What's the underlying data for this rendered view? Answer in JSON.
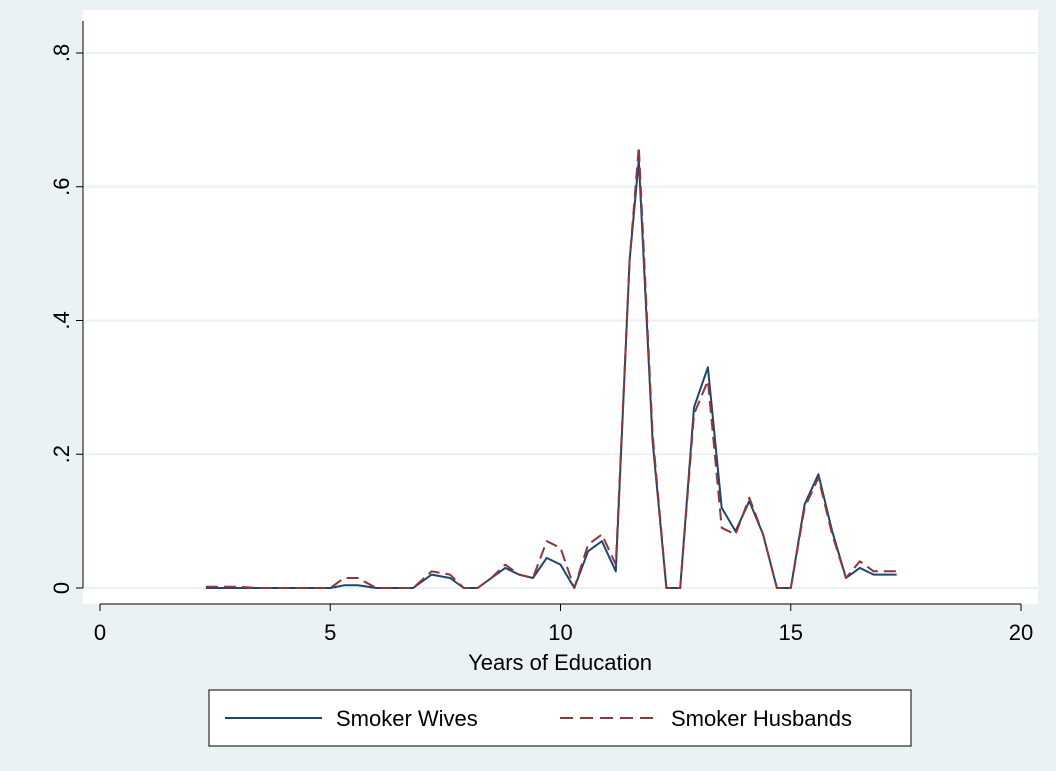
{
  "chart_data": {
    "type": "line",
    "title": "",
    "xlabel": "Years of Education",
    "ylabel": "",
    "xlim": [
      0,
      20
    ],
    "ylim": [
      0,
      0.8
    ],
    "xticks": [
      0,
      5,
      10,
      15,
      20
    ],
    "xtick_labels": [
      "0",
      "5",
      "10",
      "15",
      "20"
    ],
    "yticks": [
      0,
      0.2,
      0.4,
      0.6,
      0.8
    ],
    "ytick_labels": [
      "0",
      ".2",
      ".4",
      ".6",
      ".8"
    ],
    "grid": true,
    "legend_position": "bottom",
    "x": [
      2.3,
      2.6,
      3.0,
      3.4,
      4.0,
      4.5,
      5.0,
      5.3,
      5.6,
      6.0,
      6.4,
      6.8,
      7.2,
      7.6,
      7.9,
      8.2,
      8.5,
      8.8,
      9.1,
      9.4,
      9.7,
      10.0,
      10.3,
      10.6,
      10.9,
      11.2,
      11.5,
      11.7,
      12.0,
      12.3,
      12.6,
      12.9,
      13.2,
      13.5,
      13.8,
      14.1,
      14.4,
      14.7,
      15.0,
      15.3,
      15.6,
      15.9,
      16.2,
      16.5,
      16.8,
      17.0,
      17.3
    ],
    "series": [
      {
        "name": "Smoker Wives",
        "color": "#1a476f",
        "dash": "solid",
        "values": [
          0.0,
          0.0,
          0.0,
          0.0,
          0.0,
          0.0,
          0.0,
          0.004,
          0.004,
          0.0,
          0.0,
          0.0,
          0.02,
          0.015,
          0.0,
          0.0,
          0.015,
          0.03,
          0.02,
          0.015,
          0.045,
          0.035,
          0.0,
          0.055,
          0.07,
          0.025,
          0.49,
          0.64,
          0.22,
          0.0,
          0.0,
          0.27,
          0.33,
          0.12,
          0.085,
          0.13,
          0.08,
          0.0,
          0.0,
          0.125,
          0.17,
          0.085,
          0.015,
          0.03,
          0.02,
          0.02,
          0.02
        ]
      },
      {
        "name": "Smoker Husbands",
        "color": "#90353b",
        "dash": "dashed",
        "values": [
          0.002,
          0.002,
          0.002,
          0.0,
          0.0,
          0.0,
          0.0,
          0.015,
          0.015,
          0.0,
          0.0,
          0.0,
          0.025,
          0.02,
          0.0,
          0.0,
          0.015,
          0.035,
          0.02,
          0.015,
          0.07,
          0.06,
          0.0,
          0.065,
          0.08,
          0.035,
          0.49,
          0.66,
          0.23,
          0.0,
          0.0,
          0.26,
          0.31,
          0.09,
          0.08,
          0.135,
          0.08,
          0.0,
          0.0,
          0.12,
          0.165,
          0.08,
          0.015,
          0.04,
          0.025,
          0.025,
          0.025
        ]
      }
    ]
  },
  "colors": {
    "background": "#eaf2f3",
    "plot_area": "#ffffff",
    "gridline": "#eaf2f3"
  }
}
